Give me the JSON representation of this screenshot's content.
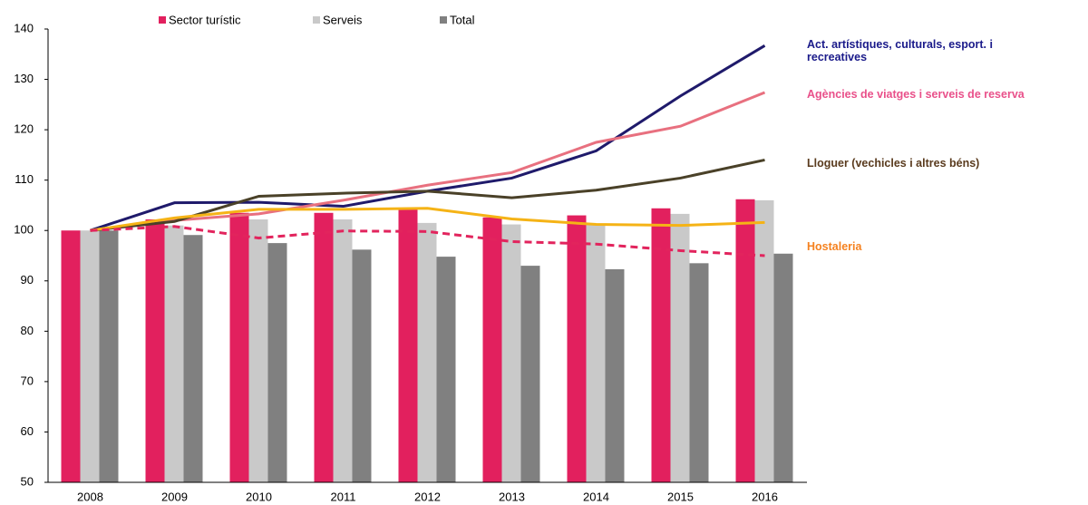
{
  "chart_data": {
    "type": "combo",
    "categories": [
      "2008",
      "2009",
      "2010",
      "2011",
      "2012",
      "2013",
      "2014",
      "2015",
      "2016"
    ],
    "bar_series": [
      {
        "name": "Sector turístic",
        "color": "#e2205e",
        "values": [
          100,
          102.2,
          103.5,
          103.5,
          104.3,
          102.6,
          103,
          104.4,
          106.2
        ]
      },
      {
        "name": "Serveis",
        "color": "#c9c9c9",
        "values": [
          100,
          101,
          102.2,
          102.2,
          101.5,
          101.2,
          101.2,
          103.3,
          106
        ]
      },
      {
        "name": "Total",
        "color": "#808080",
        "values": [
          100,
          99.1,
          97.5,
          96.2,
          94.8,
          93,
          92.3,
          93.5,
          95.4
        ]
      }
    ],
    "line_series": [
      {
        "name": "Act. artístiques, culturals, esport. i recreatives",
        "color": "#1f1a6b",
        "label_color": "#1a1a8a",
        "values": [
          100,
          105.5,
          105.6,
          104.8,
          107.8,
          110.4,
          115.8,
          126.7,
          136.7
        ]
      },
      {
        "name": "Agències de viatges i serveis de reserva",
        "color": "#e8707f",
        "label_color": "#e9508a",
        "values": [
          100,
          102,
          103.3,
          106,
          109,
          111.5,
          117.5,
          120.7,
          127.4
        ]
      },
      {
        "name": "Lloguer (vechicles i altres béns)",
        "color": "#4a4128",
        "label_color": "#5a3b1e",
        "values": [
          100,
          101.8,
          106.8,
          107.4,
          107.8,
          106.5,
          108,
          110.4,
          114
        ]
      },
      {
        "name": "Hostaleria",
        "color": "#f5b316",
        "label_color": "#f58220",
        "values": [
          100,
          102.5,
          104.2,
          104.2,
          104.4,
          102.3,
          101.2,
          101,
          101.6
        ]
      },
      {
        "color": "#e2245d",
        "dashed": true,
        "values": [
          100,
          100.8,
          98.5,
          99.9,
          99.8,
          97.8,
          97.3,
          96,
          95
        ]
      }
    ],
    "ylim": [
      50,
      140
    ],
    "yticks": [
      50,
      60,
      70,
      80,
      90,
      100,
      110,
      120,
      130,
      140
    ],
    "grid": false
  }
}
